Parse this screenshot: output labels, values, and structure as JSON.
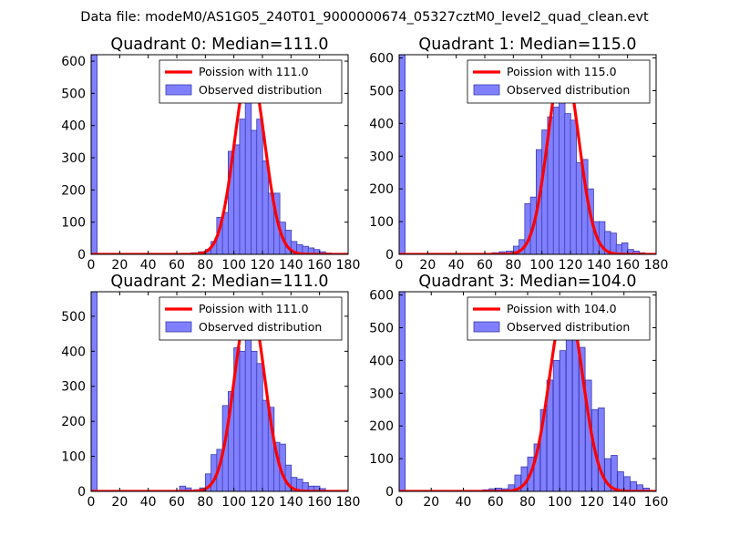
{
  "suptitle": "Data file: modeM0/AS1G05_240T01_9000000674_05327cztM0_level2_quad_clean.evt",
  "colors": {
    "bar_fill": "#8080ff",
    "bar_edge": "#3a3ab0",
    "line": "#ff0000",
    "frame": "#000000"
  },
  "chart_data": [
    {
      "type": "bar",
      "title": "Quadrant 0: Median=111.0",
      "xlim": [
        0,
        180
      ],
      "ylim": [
        0,
        620
      ],
      "xticks": [
        0,
        20,
        40,
        60,
        80,
        100,
        120,
        140,
        160,
        180
      ],
      "xtick_labels": [
        "0",
        "20",
        "40",
        "60",
        "80",
        "100",
        "120",
        "140",
        "160",
        "180"
      ],
      "yticks": [
        0,
        100,
        200,
        300,
        400,
        500,
        600
      ],
      "ytick_labels": [
        "0",
        "100",
        "200",
        "300",
        "400",
        "500",
        "600"
      ],
      "legend": {
        "position": "top-right",
        "line_label": "Poission with 111.0",
        "bar_label": "Observed distribution"
      },
      "poisson_mean": 111.0,
      "poisson_peak": 580,
      "bin_width": 4.2,
      "bins": [
        [
          0,
          620
        ],
        [
          70,
          5
        ],
        [
          75,
          8
        ],
        [
          80,
          15
        ],
        [
          84,
          40
        ],
        [
          88,
          115
        ],
        [
          92,
          130
        ],
        [
          96,
          320
        ],
        [
          100,
          340
        ],
        [
          104,
          420
        ],
        [
          108,
          500
        ],
        [
          112,
          385
        ],
        [
          116,
          420
        ],
        [
          120,
          290
        ],
        [
          124,
          190
        ],
        [
          128,
          190
        ],
        [
          132,
          100
        ],
        [
          136,
          75
        ],
        [
          140,
          40
        ],
        [
          144,
          30
        ],
        [
          148,
          25
        ],
        [
          152,
          20
        ],
        [
          156,
          15
        ],
        [
          160,
          8
        ],
        [
          164,
          4
        ],
        [
          168,
          3
        ]
      ]
    },
    {
      "type": "bar",
      "title": "Quadrant 1: Median=115.0",
      "xlim": [
        0,
        180
      ],
      "ylim": [
        0,
        610
      ],
      "xticks": [
        0,
        20,
        40,
        60,
        80,
        100,
        120,
        140,
        160,
        180
      ],
      "xtick_labels": [
        "0",
        "20",
        "40",
        "60",
        "80",
        "100",
        "120",
        "140",
        "160",
        "180"
      ],
      "yticks": [
        0,
        100,
        200,
        300,
        400,
        500,
        600
      ],
      "ytick_labels": [
        "0",
        "100",
        "200",
        "300",
        "400",
        "500",
        "600"
      ],
      "legend": {
        "position": "top-right",
        "line_label": "Poission with 115.0",
        "bar_label": "Observed distribution"
      },
      "poisson_mean": 115.0,
      "poisson_peak": 590,
      "bin_width": 4.2,
      "bins": [
        [
          0,
          610
        ],
        [
          65,
          5
        ],
        [
          70,
          8
        ],
        [
          75,
          10
        ],
        [
          80,
          25
        ],
        [
          84,
          45
        ],
        [
          88,
          155
        ],
        [
          92,
          175
        ],
        [
          96,
          320
        ],
        [
          100,
          380
        ],
        [
          104,
          420
        ],
        [
          108,
          450
        ],
        [
          112,
          505
        ],
        [
          116,
          430
        ],
        [
          120,
          410
        ],
        [
          124,
          280
        ],
        [
          128,
          290
        ],
        [
          132,
          200
        ],
        [
          136,
          100
        ],
        [
          140,
          100
        ],
        [
          144,
          70
        ],
        [
          148,
          65
        ],
        [
          152,
          30
        ],
        [
          156,
          35
        ],
        [
          160,
          15
        ],
        [
          164,
          10
        ],
        [
          168,
          5
        ]
      ]
    },
    {
      "type": "bar",
      "title": "Quadrant 2: Median=111.0",
      "xlim": [
        0,
        180
      ],
      "ylim": [
        0,
        570
      ],
      "xticks": [
        0,
        20,
        40,
        60,
        80,
        100,
        120,
        140,
        160,
        180
      ],
      "xtick_labels": [
        "0",
        "20",
        "40",
        "60",
        "80",
        "100",
        "120",
        "140",
        "160",
        "180"
      ],
      "yticks": [
        0,
        100,
        200,
        300,
        400,
        500
      ],
      "ytick_labels": [
        "0",
        "100",
        "200",
        "300",
        "400",
        "500"
      ],
      "legend": {
        "position": "top-right",
        "line_label": "Poission with 111.0",
        "bar_label": "Observed distribution"
      },
      "poisson_mean": 111.0,
      "poisson_peak": 540,
      "bin_width": 4.2,
      "bins": [
        [
          0,
          570
        ],
        [
          62,
          15
        ],
        [
          66,
          10
        ],
        [
          72,
          5
        ],
        [
          76,
          10
        ],
        [
          80,
          50
        ],
        [
          84,
          105
        ],
        [
          88,
          120
        ],
        [
          92,
          245
        ],
        [
          96,
          285
        ],
        [
          100,
          410
        ],
        [
          104,
          400
        ],
        [
          108,
          440
        ],
        [
          112,
          400
        ],
        [
          116,
          365
        ],
        [
          120,
          260
        ],
        [
          124,
          240
        ],
        [
          128,
          140
        ],
        [
          132,
          135
        ],
        [
          136,
          75
        ],
        [
          140,
          40
        ],
        [
          144,
          35
        ],
        [
          148,
          25
        ],
        [
          152,
          15
        ],
        [
          156,
          15
        ],
        [
          160,
          8
        ]
      ]
    },
    {
      "type": "bar",
      "title": "Quadrant 3: Median=104.0",
      "xlim": [
        0,
        160
      ],
      "ylim": [
        0,
        610
      ],
      "xticks": [
        0,
        20,
        40,
        60,
        80,
        100,
        120,
        140,
        160
      ],
      "xtick_labels": [
        "0",
        "20",
        "40",
        "60",
        "80",
        "100",
        "120",
        "140",
        "160"
      ],
      "yticks": [
        0,
        100,
        200,
        300,
        400,
        500,
        600
      ],
      "ytick_labels": [
        "0",
        "100",
        "200",
        "300",
        "400",
        "500",
        "600"
      ],
      "legend": {
        "position": "top-right",
        "line_label": "Poission with 104.0",
        "bar_label": "Observed distribution"
      },
      "poisson_mean": 104.0,
      "poisson_peak": 585,
      "bin_width": 3.8,
      "bins": [
        [
          0,
          610
        ],
        [
          52,
          5
        ],
        [
          56,
          8
        ],
        [
          60,
          10
        ],
        [
          64,
          8
        ],
        [
          68,
          20
        ],
        [
          72,
          50
        ],
        [
          76,
          75
        ],
        [
          80,
          105
        ],
        [
          84,
          145
        ],
        [
          88,
          250
        ],
        [
          92,
          340
        ],
        [
          96,
          400
        ],
        [
          100,
          430
        ],
        [
          104,
          540
        ],
        [
          108,
          505
        ],
        [
          112,
          440
        ],
        [
          116,
          340
        ],
        [
          120,
          250
        ],
        [
          124,
          255
        ],
        [
          128,
          100
        ],
        [
          132,
          110
        ],
        [
          136,
          60
        ],
        [
          140,
          45
        ],
        [
          144,
          30
        ],
        [
          148,
          20
        ],
        [
          152,
          10
        ]
      ]
    }
  ]
}
